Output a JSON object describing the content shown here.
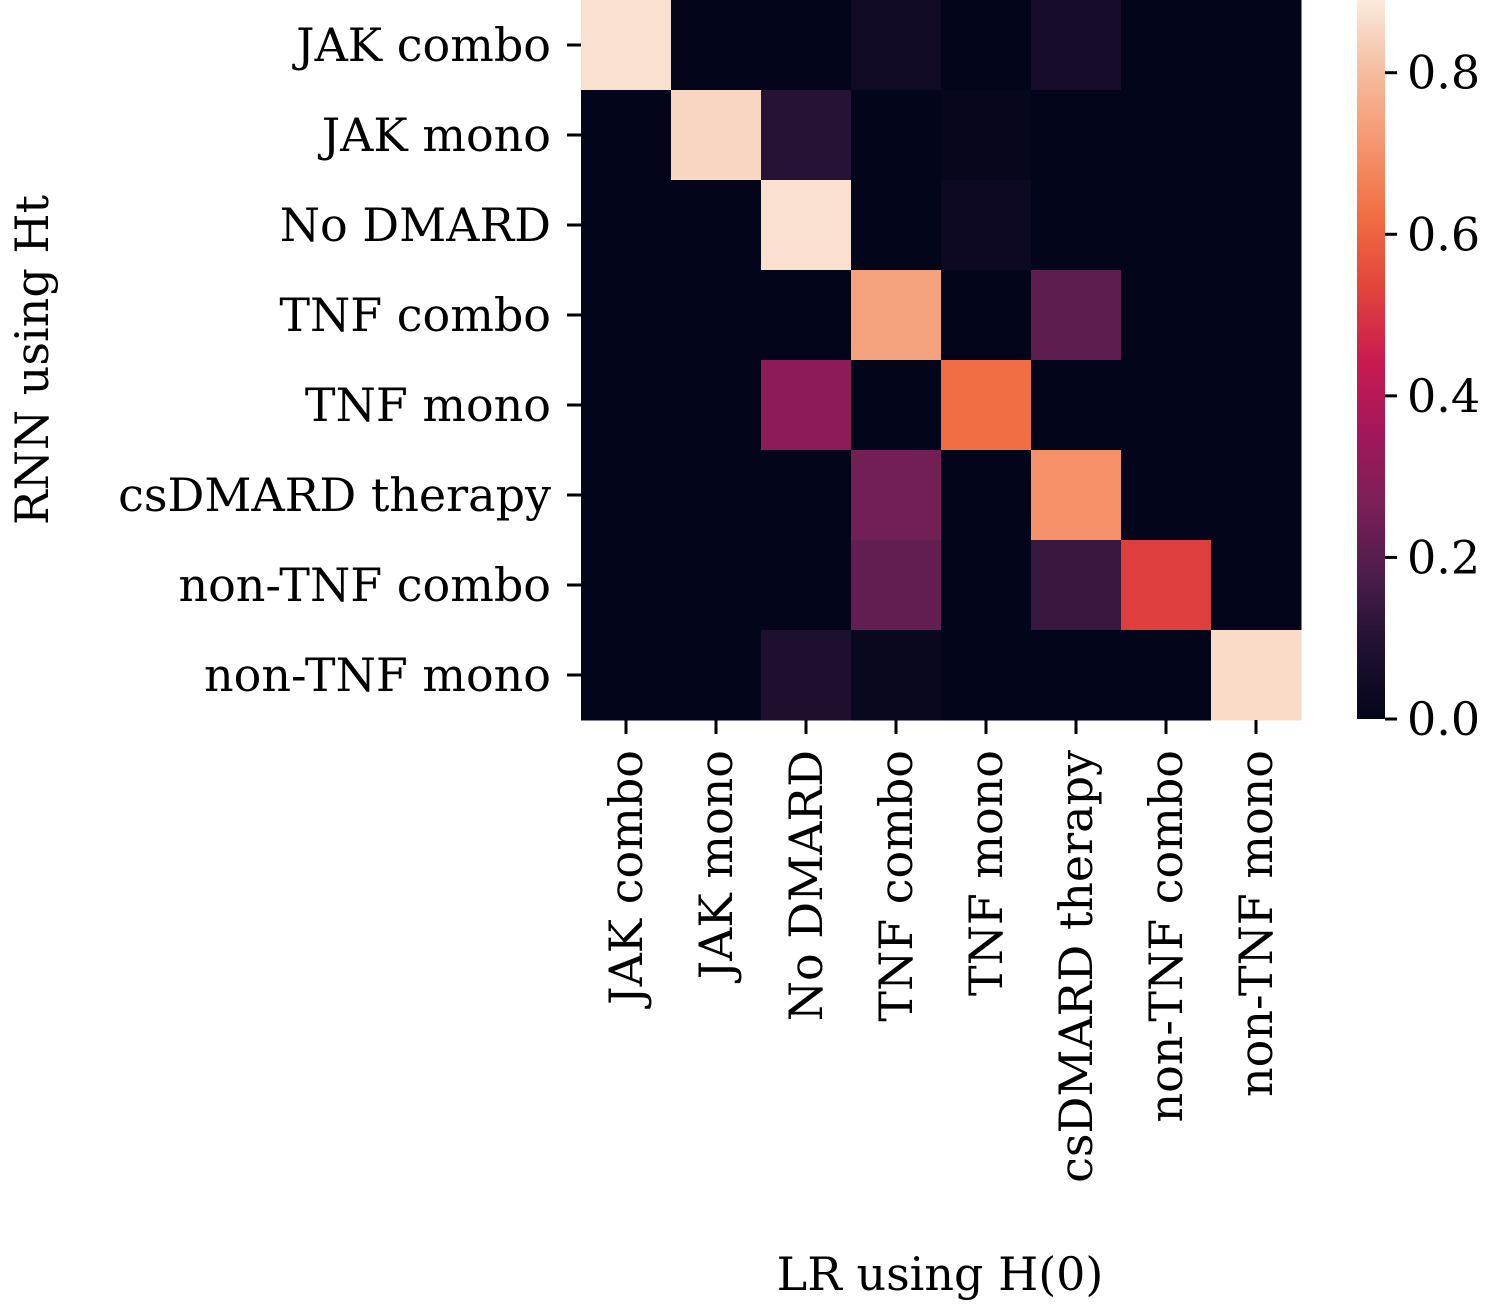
{
  "chart_data": {
    "type": "heatmap",
    "title": "",
    "xlabel": "LR using H(0)",
    "ylabel": "RNN using Ht",
    "x_categories": [
      "JAK combo",
      "JAK mono",
      "No DMARD",
      "TNF combo",
      "TNF mono",
      "csDMARD therapy",
      "non-TNF combo",
      "non-TNF mono"
    ],
    "y_categories": [
      "JAK combo",
      "JAK mono",
      "No DMARD",
      "TNF combo",
      "TNF mono",
      "csDMARD therapy",
      "non-TNF combo",
      "non-TNF mono"
    ],
    "values": [
      [
        0.87,
        0.0,
        0.0,
        0.04,
        0.0,
        0.06,
        0.0,
        0.0
      ],
      [
        0.0,
        0.85,
        0.1,
        0.0,
        0.01,
        0.0,
        0.0,
        0.0
      ],
      [
        0.0,
        0.0,
        0.87,
        0.0,
        0.03,
        0.0,
        0.0,
        0.0
      ],
      [
        0.0,
        0.0,
        0.0,
        0.74,
        0.0,
        0.21,
        0.0,
        0.0
      ],
      [
        0.0,
        0.0,
        0.31,
        0.0,
        0.62,
        0.0,
        0.0,
        0.0
      ],
      [
        0.0,
        0.0,
        0.0,
        0.25,
        0.0,
        0.7,
        0.0,
        0.0
      ],
      [
        0.0,
        0.0,
        0.0,
        0.22,
        0.0,
        0.14,
        0.52,
        0.0
      ],
      [
        0.0,
        0.0,
        0.08,
        0.02,
        0.0,
        0.0,
        0.0,
        0.86
      ]
    ],
    "vmin": 0.0,
    "vmax": 0.89,
    "colormap": "rocket",
    "colorbar_ticks": [
      0.0,
      0.2,
      0.4,
      0.6,
      0.8
    ],
    "colorbar_tick_labels": [
      "0.0",
      "0.2",
      "0.4",
      "0.6",
      "0.8"
    ],
    "grid": false
  }
}
